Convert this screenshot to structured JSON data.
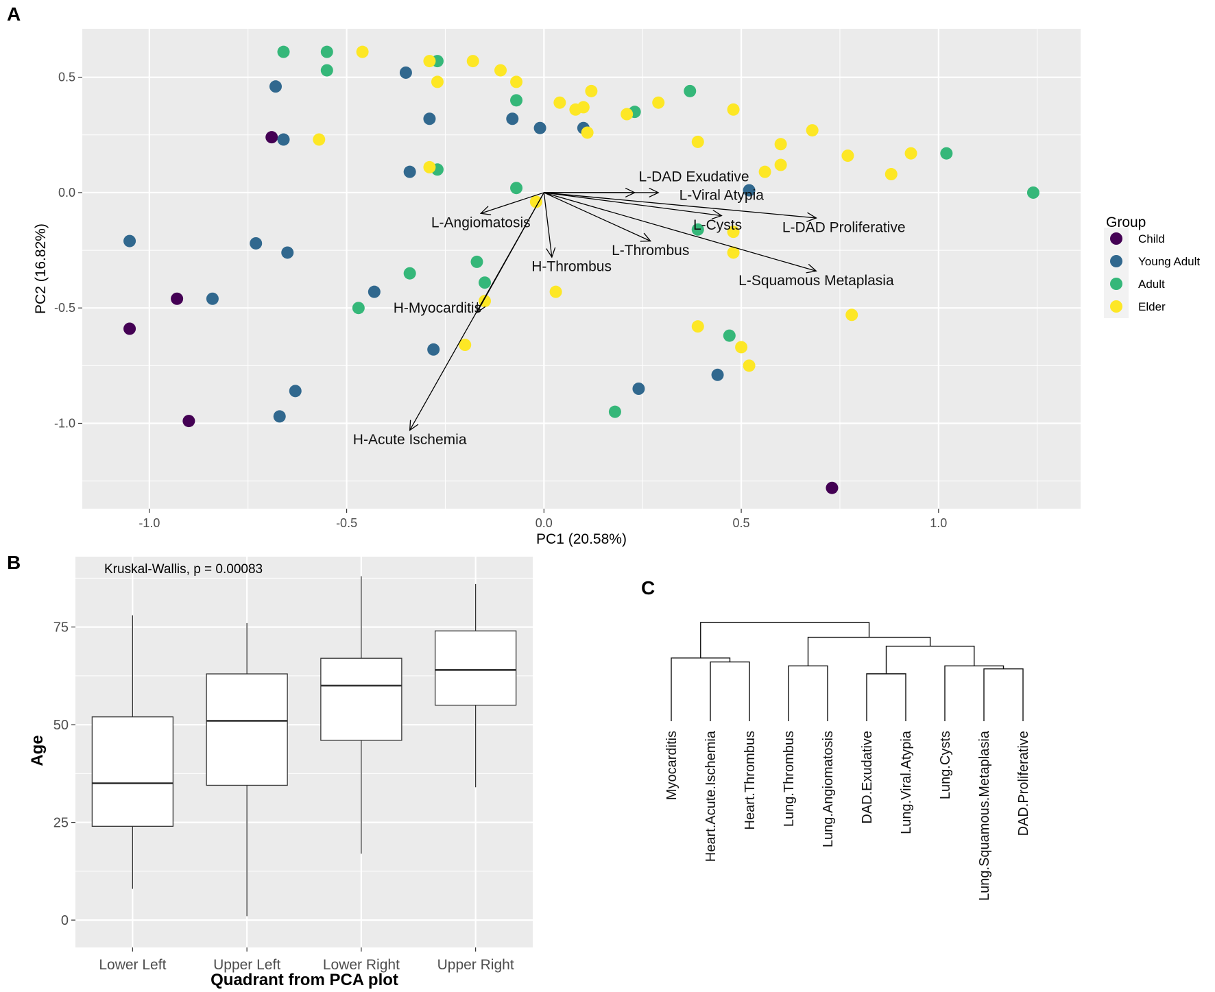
{
  "figure": {
    "panel_labels": [
      "A",
      "B",
      "C"
    ]
  },
  "colors": {
    "Child": "#440154",
    "Young Adult": "#31688E",
    "Adult": "#35B779",
    "Elder": "#FDE725",
    "panel_bg": "#EBEBEB",
    "grid": "#FFFFFF",
    "ink": "#000000",
    "axis_text": "#4D4D4D"
  },
  "chart_data": [
    {
      "id": "A",
      "type": "scatter",
      "subtype": "pca-biplot",
      "xlabel": "PC1 (20.58%)",
      "ylabel": "PC2 (16.82%)",
      "xlim": [
        -1.17,
        1.36
      ],
      "ylim": [
        -1.37,
        0.71
      ],
      "xticks": [
        -1.0,
        -0.5,
        0.0,
        0.5,
        1.0
      ],
      "xtick_labels": [
        "-1.0",
        "-0.5",
        "0.0",
        "0.5",
        "1.0"
      ],
      "yticks": [
        -1.0,
        -0.5,
        0.0,
        0.5
      ],
      "ytick_labels": [
        "-1.0",
        "-0.5",
        "0.0",
        "0.5"
      ],
      "legend": {
        "title": "Group",
        "position": "right",
        "entries": [
          "Child",
          "Young Adult",
          "Adult",
          "Elder"
        ]
      },
      "points": [
        {
          "group": "Child",
          "x": -0.69,
          "y": 0.24
        },
        {
          "group": "Child",
          "x": -0.93,
          "y": -0.46
        },
        {
          "group": "Child",
          "x": -1.05,
          "y": -0.59
        },
        {
          "group": "Child",
          "x": -0.9,
          "y": -0.99
        },
        {
          "group": "Child",
          "x": 0.73,
          "y": -1.28
        },
        {
          "group": "Young Adult",
          "x": -0.68,
          "y": 0.46
        },
        {
          "group": "Young Adult",
          "x": -0.35,
          "y": 0.52
        },
        {
          "group": "Young Adult",
          "x": -0.66,
          "y": 0.23
        },
        {
          "group": "Young Adult",
          "x": -0.29,
          "y": 0.32
        },
        {
          "group": "Young Adult",
          "x": -0.08,
          "y": 0.32
        },
        {
          "group": "Young Adult",
          "x": -0.01,
          "y": 0.28
        },
        {
          "group": "Young Adult",
          "x": 0.1,
          "y": 0.28
        },
        {
          "group": "Young Adult",
          "x": -0.34,
          "y": 0.09
        },
        {
          "group": "Young Adult",
          "x": 0.52,
          "y": 0.01
        },
        {
          "group": "Young Adult",
          "x": -1.05,
          "y": -0.21
        },
        {
          "group": "Young Adult",
          "x": -0.73,
          "y": -0.22
        },
        {
          "group": "Young Adult",
          "x": -0.65,
          "y": -0.26
        },
        {
          "group": "Young Adult",
          "x": -0.84,
          "y": -0.46
        },
        {
          "group": "Young Adult",
          "x": -0.43,
          "y": -0.43
        },
        {
          "group": "Young Adult",
          "x": -0.28,
          "y": -0.68
        },
        {
          "group": "Young Adult",
          "x": 0.44,
          "y": -0.79
        },
        {
          "group": "Young Adult",
          "x": 0.24,
          "y": -0.85
        },
        {
          "group": "Young Adult",
          "x": -0.63,
          "y": -0.86
        },
        {
          "group": "Young Adult",
          "x": -0.67,
          "y": -0.97
        },
        {
          "group": "Adult",
          "x": -0.66,
          "y": 0.61
        },
        {
          "group": "Adult",
          "x": -0.55,
          "y": 0.61
        },
        {
          "group": "Adult",
          "x": -0.55,
          "y": 0.53
        },
        {
          "group": "Adult",
          "x": -0.27,
          "y": 0.57
        },
        {
          "group": "Adult",
          "x": -0.07,
          "y": 0.4
        },
        {
          "group": "Adult",
          "x": 0.23,
          "y": 0.35
        },
        {
          "group": "Adult",
          "x": 0.37,
          "y": 0.44
        },
        {
          "group": "Adult",
          "x": -0.27,
          "y": 0.1
        },
        {
          "group": "Adult",
          "x": -0.07,
          "y": 0.02
        },
        {
          "group": "Adult",
          "x": 1.02,
          "y": 0.17
        },
        {
          "group": "Adult",
          "x": 1.24,
          "y": 0.0
        },
        {
          "group": "Adult",
          "x": 0.39,
          "y": -0.16
        },
        {
          "group": "Adult",
          "x": -0.17,
          "y": -0.3
        },
        {
          "group": "Adult",
          "x": -0.34,
          "y": -0.35
        },
        {
          "group": "Adult",
          "x": -0.15,
          "y": -0.39
        },
        {
          "group": "Adult",
          "x": -0.47,
          "y": -0.5
        },
        {
          "group": "Adult",
          "x": 0.47,
          "y": -0.62
        },
        {
          "group": "Adult",
          "x": 0.18,
          "y": -0.95
        },
        {
          "group": "Elder",
          "x": -0.46,
          "y": 0.61
        },
        {
          "group": "Elder",
          "x": -0.29,
          "y": 0.57
        },
        {
          "group": "Elder",
          "x": -0.18,
          "y": 0.57
        },
        {
          "group": "Elder",
          "x": -0.11,
          "y": 0.53
        },
        {
          "group": "Elder",
          "x": -0.07,
          "y": 0.48
        },
        {
          "group": "Elder",
          "x": -0.27,
          "y": 0.48
        },
        {
          "group": "Elder",
          "x": 0.12,
          "y": 0.44
        },
        {
          "group": "Elder",
          "x": 0.04,
          "y": 0.39
        },
        {
          "group": "Elder",
          "x": 0.08,
          "y": 0.36
        },
        {
          "group": "Elder",
          "x": 0.1,
          "y": 0.37
        },
        {
          "group": "Elder",
          "x": 0.29,
          "y": 0.39
        },
        {
          "group": "Elder",
          "x": 0.48,
          "y": 0.36
        },
        {
          "group": "Elder",
          "x": 0.21,
          "y": 0.34
        },
        {
          "group": "Elder",
          "x": 0.11,
          "y": 0.26
        },
        {
          "group": "Elder",
          "x": -0.57,
          "y": 0.23
        },
        {
          "group": "Elder",
          "x": 0.39,
          "y": 0.22
        },
        {
          "group": "Elder",
          "x": 0.6,
          "y": 0.21
        },
        {
          "group": "Elder",
          "x": 0.68,
          "y": 0.27
        },
        {
          "group": "Elder",
          "x": 0.77,
          "y": 0.16
        },
        {
          "group": "Elder",
          "x": 0.93,
          "y": 0.17
        },
        {
          "group": "Elder",
          "x": 0.6,
          "y": 0.12
        },
        {
          "group": "Elder",
          "x": 0.56,
          "y": 0.09
        },
        {
          "group": "Elder",
          "x": 0.88,
          "y": 0.08
        },
        {
          "group": "Elder",
          "x": -0.29,
          "y": 0.11
        },
        {
          "group": "Elder",
          "x": -0.02,
          "y": -0.04
        },
        {
          "group": "Elder",
          "x": 0.48,
          "y": -0.17
        },
        {
          "group": "Elder",
          "x": 0.48,
          "y": -0.26
        },
        {
          "group": "Elder",
          "x": 0.03,
          "y": -0.43
        },
        {
          "group": "Elder",
          "x": -0.15,
          "y": -0.47
        },
        {
          "group": "Elder",
          "x": 0.78,
          "y": -0.53
        },
        {
          "group": "Elder",
          "x": 0.39,
          "y": -0.58
        },
        {
          "group": "Elder",
          "x": 0.5,
          "y": -0.67
        },
        {
          "group": "Elder",
          "x": 0.52,
          "y": -0.75
        },
        {
          "group": "Elder",
          "x": -0.2,
          "y": -0.66
        }
      ],
      "loadings": [
        {
          "label": "L-DAD Exudative",
          "x": 0.29,
          "y": 0.0,
          "lx": 0.38,
          "ly": 0.07
        },
        {
          "label": "L-Viral Atypia",
          "x": 0.23,
          "y": 0.0,
          "lx": 0.45,
          "ly": -0.01
        },
        {
          "label": "L-DAD Proliferative",
          "x": 0.69,
          "y": -0.11,
          "lx": 0.76,
          "ly": -0.15
        },
        {
          "label": "L-Cysts",
          "x": 0.45,
          "y": -0.1,
          "lx": 0.44,
          "ly": -0.14
        },
        {
          "label": "L-Thrombus",
          "x": 0.27,
          "y": -0.21,
          "lx": 0.27,
          "ly": -0.25
        },
        {
          "label": "L-Squamous Metaplasia",
          "x": 0.69,
          "y": -0.34,
          "lx": 0.69,
          "ly": -0.38
        },
        {
          "label": "L-Angiomatosis",
          "x": -0.16,
          "y": -0.09,
          "lx": -0.16,
          "ly": -0.13
        },
        {
          "label": "H-Thrombus",
          "x": 0.02,
          "y": -0.28,
          "lx": 0.07,
          "ly": -0.32
        },
        {
          "label": "H-Myocarditis",
          "x": -0.17,
          "y": -0.52,
          "lx": -0.27,
          "ly": -0.5
        },
        {
          "label": "H-Acute Ischemia",
          "x": -0.34,
          "y": -1.03,
          "lx": -0.34,
          "ly": -1.07
        }
      ]
    },
    {
      "id": "B",
      "type": "box",
      "annotation": "Kruskal-Wallis, p = 0.00083",
      "xlabel": "Quadrant from PCA plot",
      "ylabel": "Age",
      "ylim": [
        -7,
        93
      ],
      "yticks": [
        0,
        25,
        50,
        75
      ],
      "ytick_labels": [
        "0",
        "25",
        "50",
        "75"
      ],
      "categories": [
        "Lower Left",
        "Upper Left",
        "Lower Right",
        "Upper Right"
      ],
      "boxes": [
        {
          "min": 8,
          "q1": 24,
          "median": 35,
          "q3": 52,
          "max": 78
        },
        {
          "min": 1,
          "q1": 34.5,
          "median": 51,
          "q3": 63,
          "max": 76
        },
        {
          "min": 17,
          "q1": 46,
          "median": 60,
          "q3": 67,
          "max": 88
        },
        {
          "min": 34,
          "q1": 55,
          "median": 64,
          "q3": 74,
          "max": 86
        }
      ]
    },
    {
      "id": "C",
      "type": "dendrogram",
      "leaves": [
        "Myocarditis",
        "Heart.Acute.Ischemia",
        "Heart.Thrombus",
        "Lung.Thrombus",
        "Lung.Angiomatosis",
        "DAD.Exudative",
        "Lung.Viral.Atypia",
        "Lung.Cysts",
        "Lung.Squamous.Metaplasia",
        "DAD.Proliferative"
      ],
      "merges": [
        {
          "id": "m1",
          "left": 1,
          "right": 2,
          "height": 0.6
        },
        {
          "id": "m2",
          "left": 0,
          "right": "m1",
          "height": 0.64
        },
        {
          "id": "m3",
          "left": 3,
          "right": 4,
          "height": 0.56
        },
        {
          "id": "m4",
          "left": 5,
          "right": 6,
          "height": 0.48
        },
        {
          "id": "m5",
          "left": 8,
          "right": 9,
          "height": 0.53
        },
        {
          "id": "m6",
          "left": 7,
          "right": "m5",
          "height": 0.56
        },
        {
          "id": "m7",
          "left": "m4",
          "right": "m6",
          "height": 0.76
        },
        {
          "id": "m8",
          "left": "m3",
          "right": "m7",
          "height": 0.85
        },
        {
          "id": "m9",
          "left": "m2",
          "right": "m8",
          "height": 1.0
        }
      ]
    }
  ]
}
